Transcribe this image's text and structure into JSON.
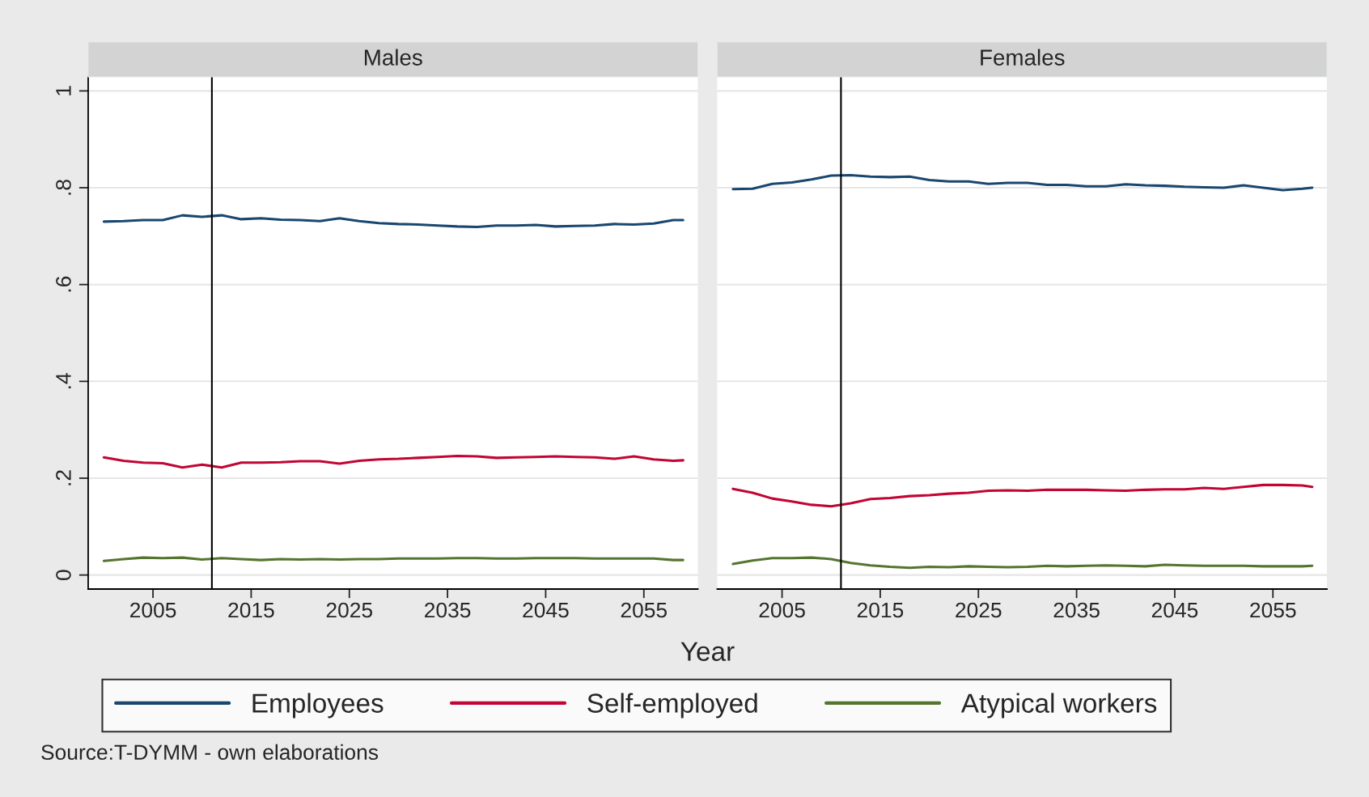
{
  "chart_data": [
    {
      "type": "line",
      "title": "Males",
      "xlabel": "Year",
      "x": [
        2000,
        2002,
        2004,
        2006,
        2008,
        2010,
        2012,
        2014,
        2016,
        2018,
        2020,
        2022,
        2024,
        2026,
        2028,
        2030,
        2032,
        2034,
        2036,
        2038,
        2040,
        2042,
        2044,
        2046,
        2048,
        2050,
        2052,
        2054,
        2056,
        2058,
        2059
      ],
      "series": [
        {
          "name": "Employees",
          "color": "#1a476f",
          "values": [
            0.73,
            0.731,
            0.733,
            0.733,
            0.743,
            0.74,
            0.743,
            0.735,
            0.737,
            0.734,
            0.733,
            0.731,
            0.737,
            0.731,
            0.727,
            0.725,
            0.724,
            0.722,
            0.72,
            0.719,
            0.722,
            0.722,
            0.723,
            0.72,
            0.721,
            0.722,
            0.725,
            0.724,
            0.726,
            0.733,
            0.733
          ]
        },
        {
          "name": "Self-employed",
          "color": "#c10534",
          "values": [
            0.243,
            0.236,
            0.232,
            0.231,
            0.222,
            0.228,
            0.222,
            0.232,
            0.232,
            0.233,
            0.235,
            0.235,
            0.23,
            0.236,
            0.239,
            0.24,
            0.242,
            0.244,
            0.246,
            0.245,
            0.242,
            0.243,
            0.244,
            0.245,
            0.244,
            0.243,
            0.24,
            0.245,
            0.239,
            0.236,
            0.237
          ]
        },
        {
          "name": "Atypical workers",
          "color": "#55752f",
          "values": [
            0.029,
            0.033,
            0.036,
            0.035,
            0.036,
            0.032,
            0.035,
            0.033,
            0.031,
            0.033,
            0.032,
            0.033,
            0.032,
            0.033,
            0.033,
            0.034,
            0.034,
            0.034,
            0.035,
            0.035,
            0.034,
            0.034,
            0.035,
            0.035,
            0.035,
            0.034,
            0.034,
            0.034,
            0.034,
            0.031,
            0.031
          ]
        }
      ],
      "xlim": [
        1998.4,
        2060.5
      ],
      "xticks": [
        2005,
        2015,
        2025,
        2035,
        2045,
        2055
      ],
      "ylim": [
        -0.029,
        1.029
      ],
      "yticks": [
        0,
        {
          "value": 0.2,
          "label": ".2"
        },
        {
          "value": 0.4,
          "label": ".4"
        },
        {
          "value": 0.6,
          "label": ".6"
        },
        {
          "value": 0.8,
          "label": ".8"
        },
        1
      ],
      "grid": "y",
      "legend": "bottom",
      "ref_lines": [
        {
          "axis": "x",
          "value": 2011,
          "color": "#000000"
        }
      ],
      "annotations": [
        "Source:T-DYMM - own elaborations"
      ]
    },
    {
      "type": "line",
      "title": "Females",
      "x": [
        2000,
        2002,
        2004,
        2006,
        2008,
        2010,
        2012,
        2014,
        2016,
        2018,
        2020,
        2022,
        2024,
        2026,
        2028,
        2030,
        2032,
        2034,
        2036,
        2038,
        2040,
        2042,
        2044,
        2046,
        2048,
        2050,
        2052,
        2054,
        2056,
        2058,
        2059
      ],
      "series": [
        {
          "color": "#1a476f",
          "values": [
            0.797,
            0.798,
            0.808,
            0.811,
            0.817,
            0.825,
            0.826,
            0.823,
            0.822,
            0.823,
            0.816,
            0.813,
            0.813,
            0.808,
            0.81,
            0.81,
            0.806,
            0.806,
            0.803,
            0.803,
            0.807,
            0.805,
            0.804,
            0.802,
            0.801,
            0.8,
            0.805,
            0.8,
            0.795,
            0.798,
            0.8
          ]
        },
        {
          "color": "#c10534",
          "values": [
            0.178,
            0.17,
            0.158,
            0.152,
            0.145,
            0.142,
            0.148,
            0.157,
            0.159,
            0.163,
            0.165,
            0.168,
            0.17,
            0.174,
            0.175,
            0.174,
            0.176,
            0.176,
            0.176,
            0.175,
            0.174,
            0.176,
            0.177,
            0.177,
            0.18,
            0.178,
            0.182,
            0.186,
            0.186,
            0.185,
            0.182
          ]
        },
        {
          "color": "#55752f",
          "values": [
            0.023,
            0.03,
            0.035,
            0.035,
            0.036,
            0.033,
            0.025,
            0.02,
            0.017,
            0.015,
            0.017,
            0.016,
            0.018,
            0.017,
            0.016,
            0.017,
            0.019,
            0.018,
            0.019,
            0.02,
            0.019,
            0.018,
            0.021,
            0.02,
            0.019,
            0.019,
            0.019,
            0.018,
            0.018,
            0.018,
            0.019
          ]
        }
      ],
      "xlim": [
        1998.4,
        2060.5
      ],
      "xticks": [
        2005,
        2015,
        2025,
        2035,
        2045,
        2055
      ],
      "ylim": [
        -0.029,
        1.029
      ],
      "yticks": [
        0,
        0.2,
        0.4,
        0.6,
        0.8,
        1
      ],
      "grid": "y",
      "tick_labels": "x",
      "ref_lines": [
        {
          "axis": "x",
          "value": 2011,
          "color": "#000000"
        }
      ]
    }
  ]
}
